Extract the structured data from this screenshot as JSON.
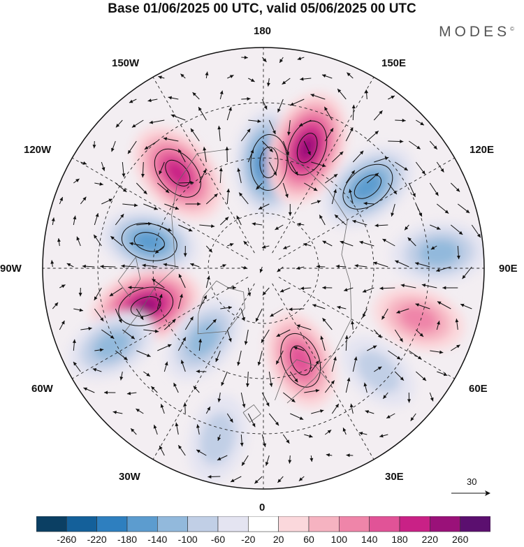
{
  "title": "Base 01/06/2025 00 UTC, valid 05/06/2025 00 UTC",
  "brand": {
    "name": "MODES",
    "mark": "©"
  },
  "longitude_labels": {
    "n180": "180",
    "s0": "0",
    "w90": "90W",
    "e90": "90E",
    "w150": "150W",
    "e150": "150E",
    "w120": "120W",
    "e120": "120E",
    "w60": "60W",
    "e60": "60E",
    "w30": "30W",
    "e30": "30E"
  },
  "vector_key": {
    "label": "30"
  },
  "colorbar": {
    "ticks": [
      "-260",
      "-220",
      "-180",
      "-140",
      "-100",
      "-60",
      "-20",
      "20",
      "60",
      "100",
      "140",
      "180",
      "220",
      "260"
    ],
    "colors": [
      "#0b3f63",
      "#14609a",
      "#2e7fbf",
      "#5c9ccf",
      "#92b9dc",
      "#c1cfe6",
      "#e4e4f1",
      "#ffffff",
      "#fbd8dc",
      "#f6b3c1",
      "#ef85a9",
      "#e15397",
      "#c92186",
      "#9a1179",
      "#5b0f6f"
    ]
  },
  "anomalies": [
    {
      "name": "neg-180",
      "lon": 177,
      "r": 0.48,
      "value": -200
    },
    {
      "name": "pos-160e",
      "lon": 160,
      "r": 0.58,
      "value": 240
    },
    {
      "name": "neg-130e",
      "lon": 128,
      "r": 0.6,
      "value": -170
    },
    {
      "name": "pos-135w",
      "lon": -138,
      "r": 0.58,
      "value": 200
    },
    {
      "name": "pos-75e",
      "lon": 72,
      "r": 0.74,
      "value": 110
    },
    {
      "name": "neg-100w",
      "lon": -103,
      "r": 0.53,
      "value": -150
    },
    {
      "name": "neg-95e",
      "lon": 95,
      "r": 0.8,
      "value": -130
    },
    {
      "name": "pos-70w",
      "lon": -72,
      "r": 0.56,
      "value": 230
    },
    {
      "name": "neg-65w",
      "lon": -63,
      "r": 0.77,
      "value": -110
    },
    {
      "name": "neg-40w",
      "lon": -40,
      "r": 0.42,
      "value": -120
    },
    {
      "name": "pos-20e",
      "lon": 22,
      "r": 0.45,
      "value": 150
    },
    {
      "name": "neg-50e",
      "lon": 48,
      "r": 0.7,
      "value": -60
    },
    {
      "name": "neg-10w",
      "lon": -15,
      "r": 0.8,
      "value": -80
    }
  ]
}
